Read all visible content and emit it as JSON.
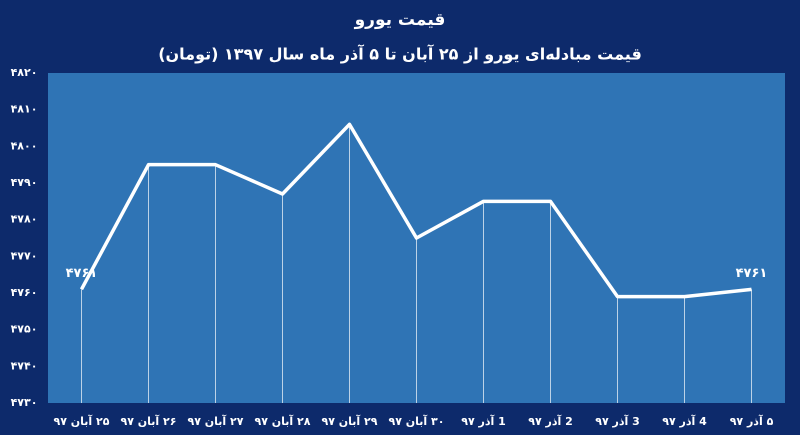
{
  "chart_data": {
    "type": "line",
    "title": "قیمت یورو",
    "subtitle": "قیمت مبادله‌ای یورو از ۲۵ آبان تا ۵ آذر ماه سال ۱۳۹۷ (تومان)",
    "categories": [
      "۲۵ آبان ۹۷",
      "۲۶ آبان ۹۷",
      "۲۷ آبان ۹۷",
      "۲۸ آبان ۹۷",
      "۲۹ آبان ۹۷",
      "۳۰ آبان ۹۷",
      "1 آذر ۹۷",
      "2 آذر ۹۷",
      "3 آذر ۹۷",
      "4 آذر ۹۷",
      "۵ آذر ۹۷"
    ],
    "values": [
      4761,
      4795,
      4795,
      4787,
      4806,
      4775,
      4785,
      4785,
      4759,
      4759,
      4761
    ],
    "value_labels": [
      "۴۷۶۱",
      null,
      null,
      null,
      null,
      null,
      null,
      null,
      null,
      null,
      "۴۷۶۱"
    ],
    "color": "#ffffff",
    "ylim": [
      4730,
      4820
    ],
    "yticks": [
      {
        "value": 4730,
        "label": "۴۷۳۰"
      },
      {
        "value": 4740,
        "label": "۴۷۴۰"
      },
      {
        "value": 4750,
        "label": "۴۷۵۰"
      },
      {
        "value": 4760,
        "label": "۴۷۶۰"
      },
      {
        "value": 4770,
        "label": "۴۷۷۰"
      },
      {
        "value": 4780,
        "label": "۴۷۸۰"
      },
      {
        "value": 4790,
        "label": "۴۷۹۰"
      },
      {
        "value": 4800,
        "label": "۴۸۰۰"
      },
      {
        "value": 4810,
        "label": "۴۸۱۰"
      },
      {
        "value": 4820,
        "label": "۴۸۲۰"
      }
    ],
    "grid": false
  }
}
